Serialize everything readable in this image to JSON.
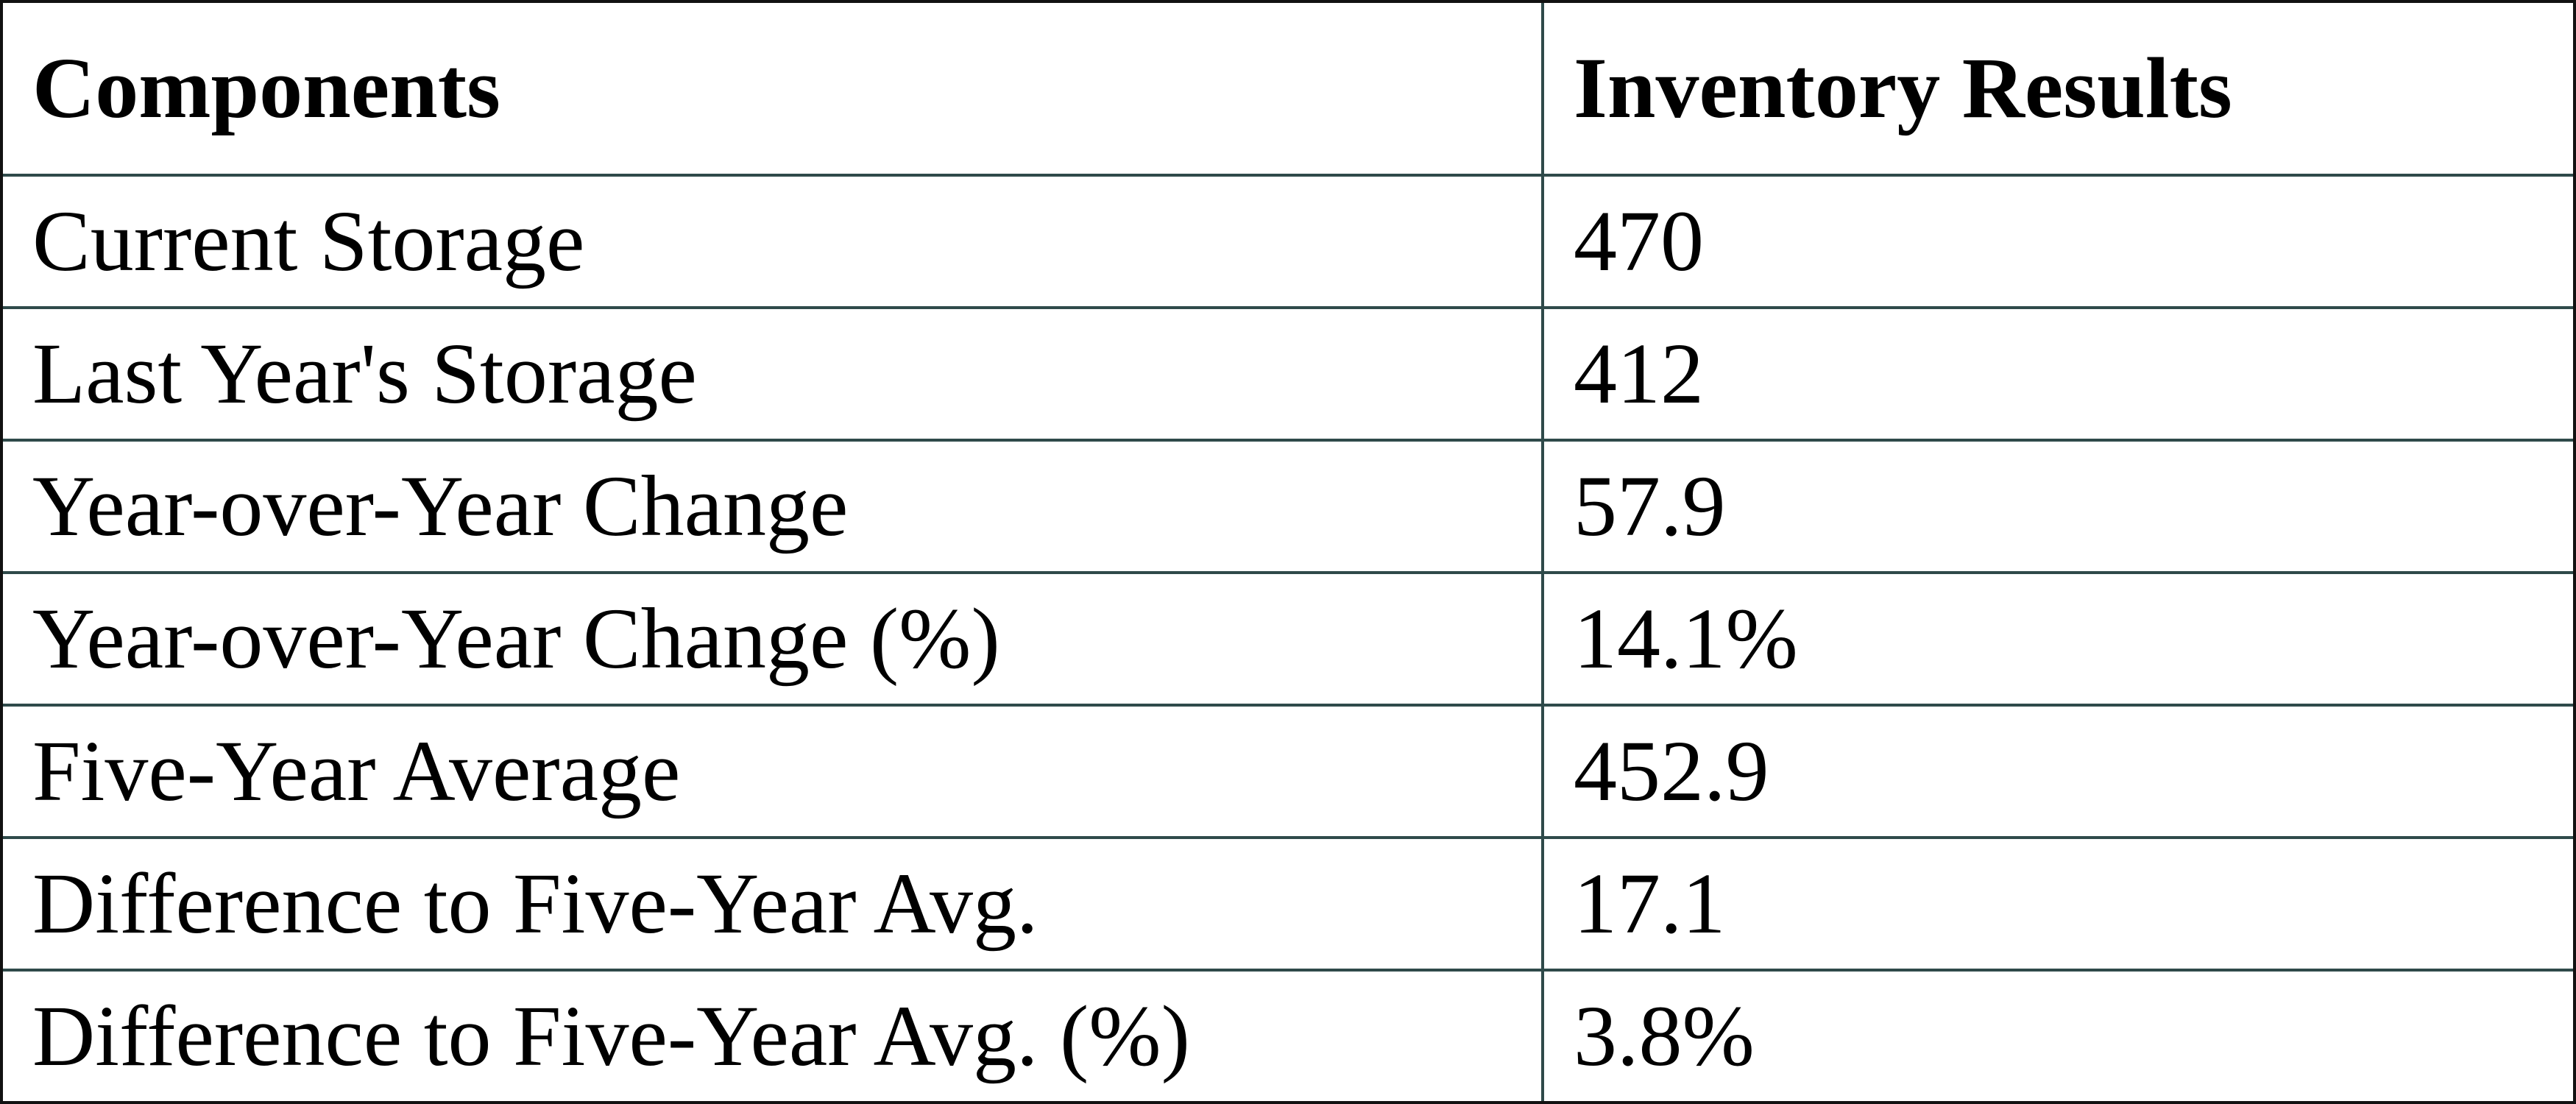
{
  "table": {
    "header": [
      "Components",
      "Inventory Results"
    ],
    "rows": [
      [
        "Current Storage",
        "470"
      ],
      [
        "Last Year's Storage",
        "412"
      ],
      [
        "Year-over-Year Change",
        "57.9"
      ],
      [
        "Year-over-Year Change (%)",
        "14.1%"
      ],
      [
        "Five-Year Average",
        "452.9"
      ],
      [
        "Difference to Five-Year Avg.",
        "17.1"
      ],
      [
        "Difference to Five-Year Avg. (%)",
        "3.8%"
      ]
    ]
  }
}
